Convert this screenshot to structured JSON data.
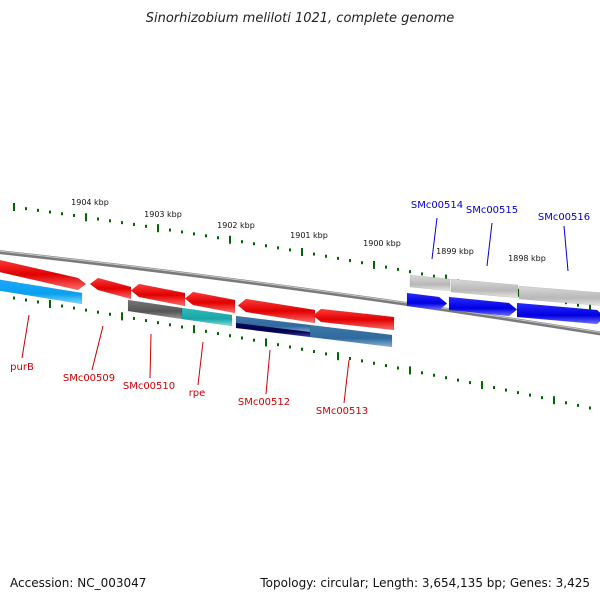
{
  "title": "Sinorhizobium meliloti 1021, complete genome",
  "ruler_labels": [
    "1904 kbp",
    "1903 kbp",
    "1902 kbp",
    "1901 kbp",
    "1900 kbp",
    "1899 kbp",
    "1898 kbp"
  ],
  "genes": [
    {
      "name": "purB",
      "color": "#cc0000"
    },
    {
      "name": "SMc00509",
      "color": "#cc0000"
    },
    {
      "name": "SMc00510",
      "color": "#cc0000"
    },
    {
      "name": "rpe",
      "color": "#cc0000"
    },
    {
      "name": "SMc00512",
      "color": "#cc0000"
    },
    {
      "name": "SMc00513",
      "color": "#cc0000"
    },
    {
      "name": "SMc00514",
      "color": "#0000cc"
    },
    {
      "name": "SMc00515",
      "color": "#0000cc"
    },
    {
      "name": "SMc00516",
      "color": "#0000cc"
    }
  ],
  "footer": {
    "accession": "Accession: NC_003047",
    "summary": "Topology: circular; Length: 3,654,135 bp; Genes: 3,425"
  },
  "colors": {
    "forward_gene": "#ff0000",
    "reverse_gene": "#0000ff",
    "ruler_tick": "#006600",
    "backbone": "#808080"
  }
}
